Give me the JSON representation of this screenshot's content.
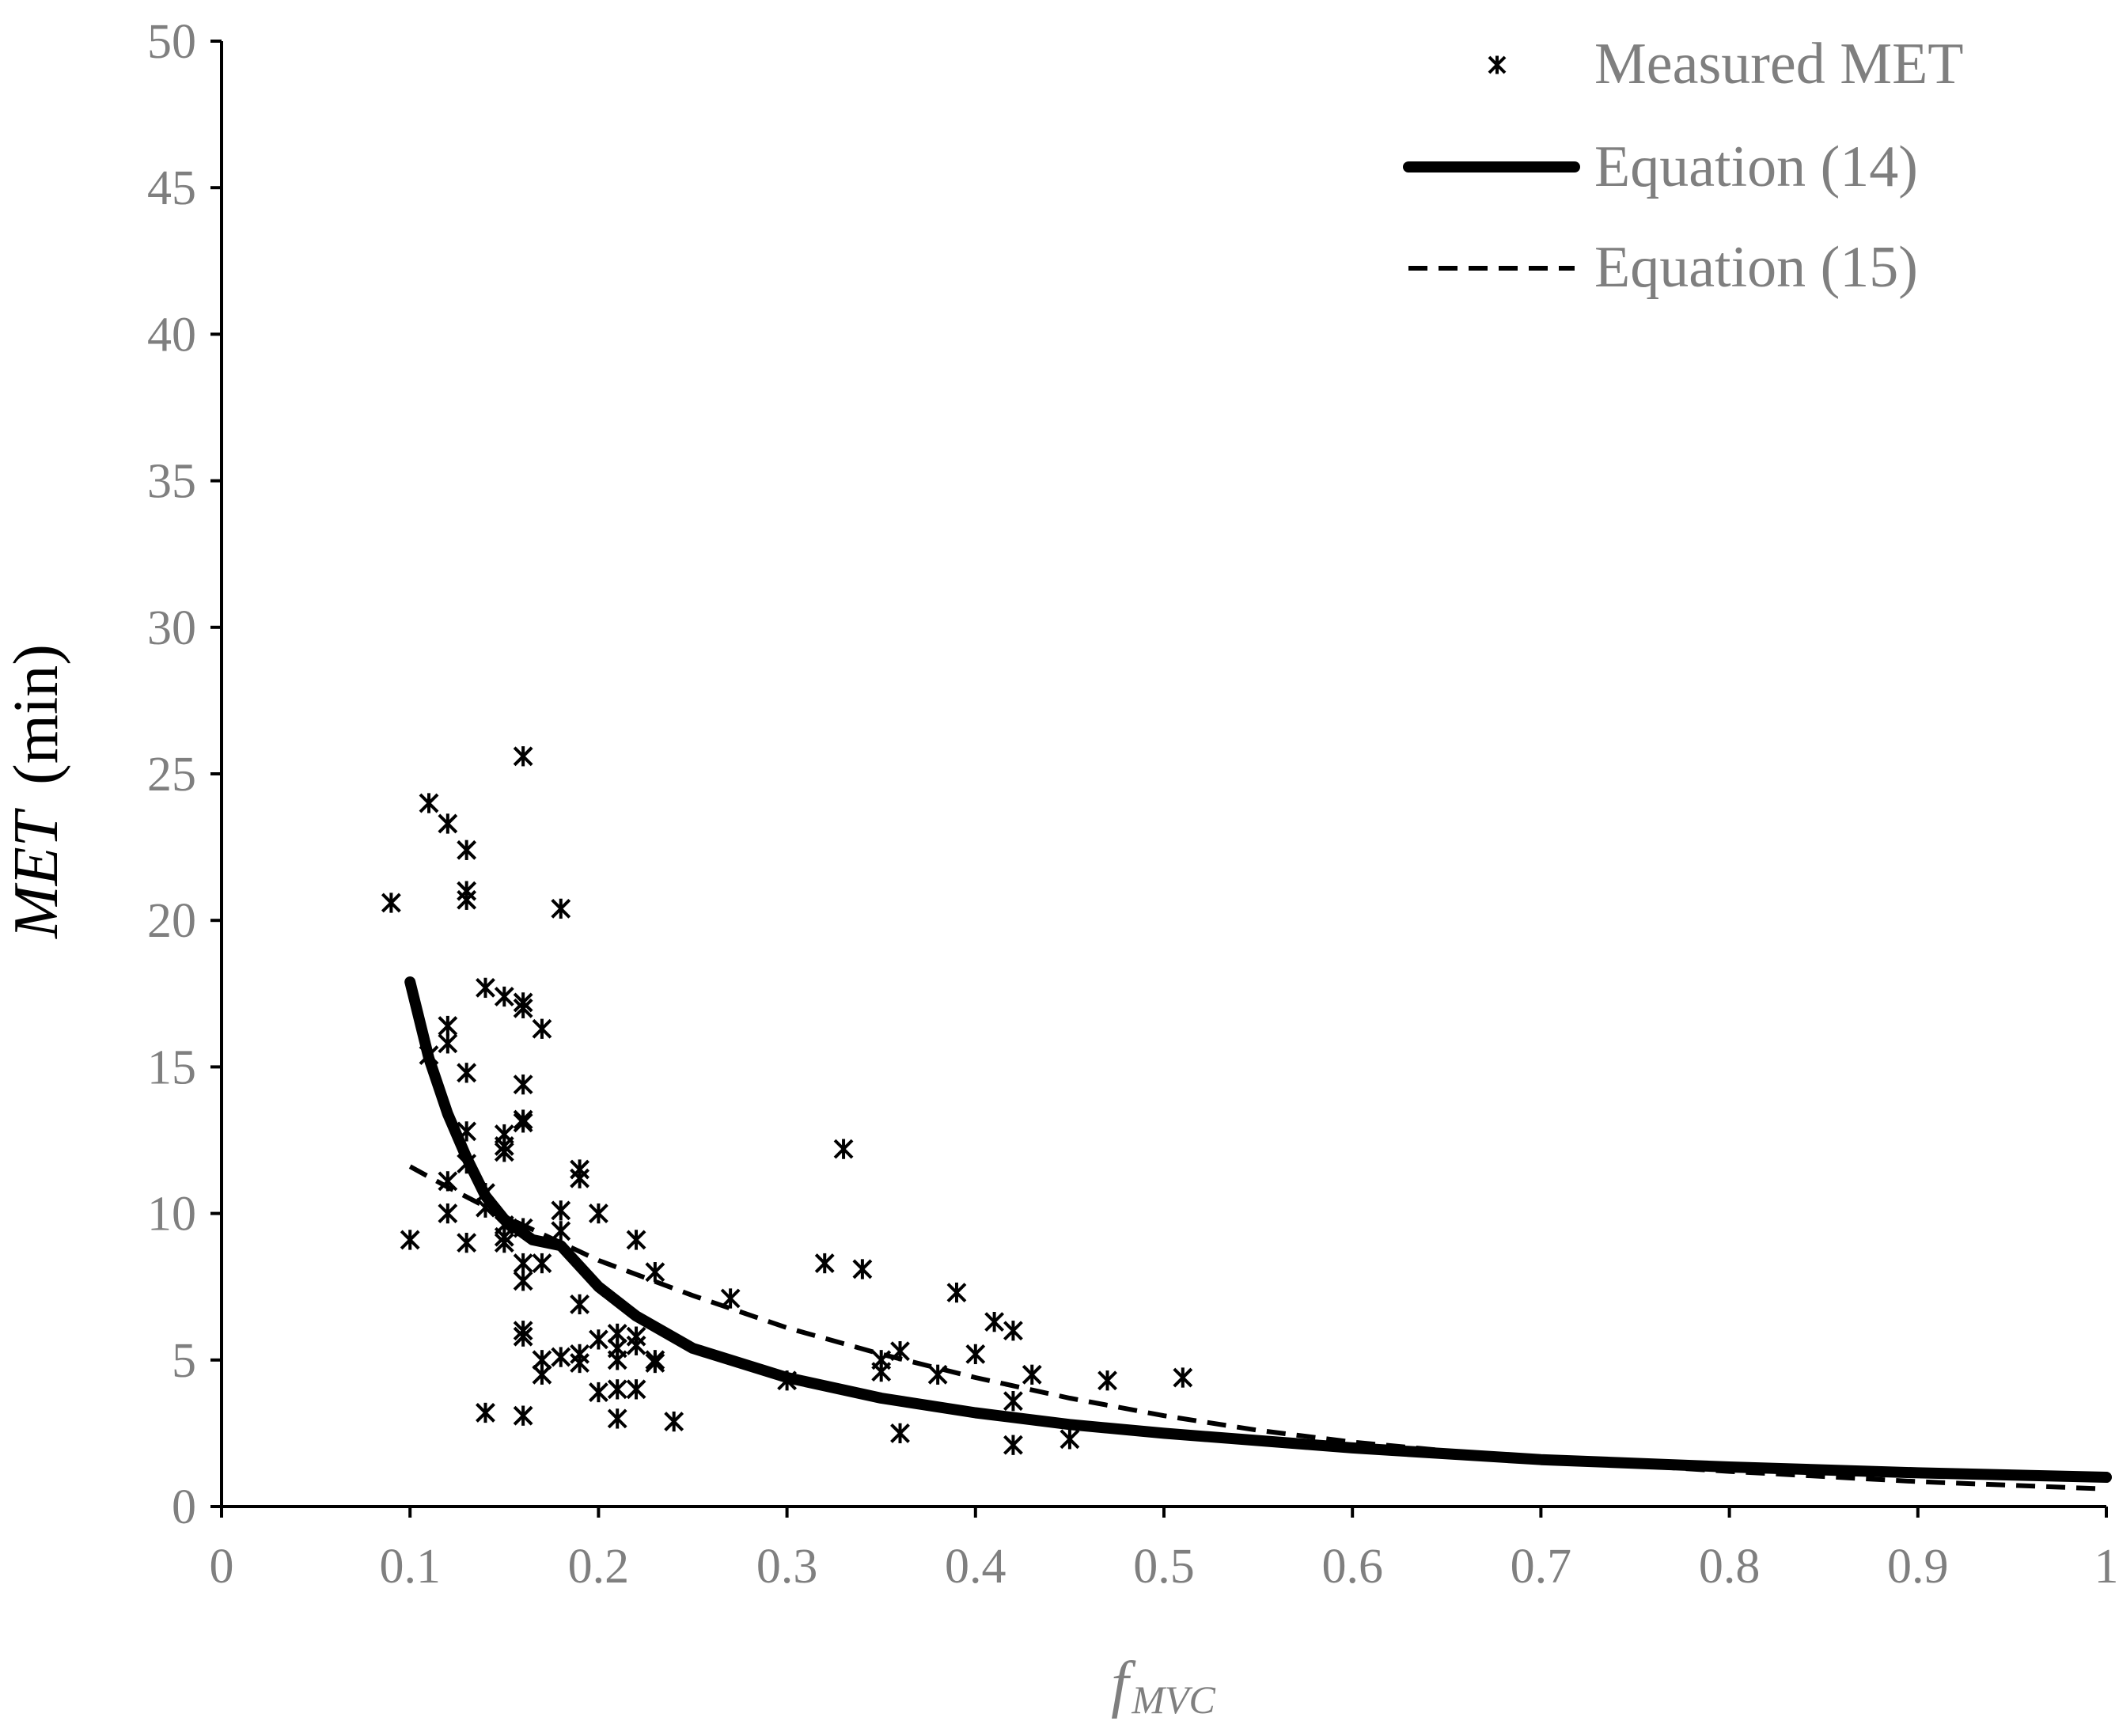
{
  "chart_data": {
    "type": "scatter",
    "title": "",
    "xlabel": "fMVC",
    "xlabel_main": "f",
    "xlabel_sub": "MVC",
    "ylabel": "MET (min)",
    "ylabel_italic": "MET",
    "ylabel_unit": "(min)",
    "xlim": [
      0,
      1
    ],
    "ylim": [
      0,
      50
    ],
    "xticks": [
      0,
      0.1,
      0.2,
      0.3,
      0.4,
      0.5,
      0.6,
      0.7,
      0.8,
      0.9,
      1
    ],
    "xtick_labels": [
      "0",
      "0.1",
      "0.2",
      "0.3",
      "0.4",
      "0.5",
      "0.6",
      "0.7",
      "0.8",
      "0.9",
      "1"
    ],
    "yticks": [
      0,
      5,
      10,
      15,
      20,
      25,
      30,
      35,
      40,
      45,
      50
    ],
    "ytick_labels": [
      "0",
      "5",
      "10",
      "15",
      "20",
      "25",
      "30",
      "35",
      "40",
      "45",
      "50"
    ],
    "grid": false,
    "legend_position": "top-right",
    "colors": {
      "axis": "#000000",
      "tick_text": "#7f7f7f",
      "series": "#000000"
    },
    "series": [
      {
        "name": "Measured MET",
        "kind": "scatter",
        "marker": "asterisk",
        "points": [
          [
            0.09,
            20.6
          ],
          [
            0.1,
            9.1
          ],
          [
            0.11,
            24.0
          ],
          [
            0.11,
            15.4
          ],
          [
            0.12,
            23.3
          ],
          [
            0.12,
            16.4
          ],
          [
            0.12,
            15.8
          ],
          [
            0.12,
            11.1
          ],
          [
            0.12,
            10.0
          ],
          [
            0.13,
            22.4
          ],
          [
            0.13,
            21.0
          ],
          [
            0.13,
            20.7
          ],
          [
            0.13,
            14.8
          ],
          [
            0.13,
            12.8
          ],
          [
            0.13,
            11.7
          ],
          [
            0.13,
            9.0
          ],
          [
            0.14,
            17.7
          ],
          [
            0.14,
            10.7
          ],
          [
            0.14,
            10.2
          ],
          [
            0.14,
            3.2
          ],
          [
            0.15,
            17.4
          ],
          [
            0.15,
            12.7
          ],
          [
            0.15,
            12.3
          ],
          [
            0.15,
            12.1
          ],
          [
            0.15,
            9.6
          ],
          [
            0.15,
            9.2
          ],
          [
            0.15,
            9.0
          ],
          [
            0.16,
            25.6
          ],
          [
            0.16,
            17.2
          ],
          [
            0.16,
            17.0
          ],
          [
            0.16,
            14.4
          ],
          [
            0.16,
            13.2
          ],
          [
            0.16,
            13.1
          ],
          [
            0.16,
            9.5
          ],
          [
            0.16,
            8.3
          ],
          [
            0.16,
            7.7
          ],
          [
            0.16,
            6.0
          ],
          [
            0.16,
            5.8
          ],
          [
            0.16,
            3.1
          ],
          [
            0.17,
            16.3
          ],
          [
            0.17,
            8.3
          ],
          [
            0.17,
            5.0
          ],
          [
            0.17,
            4.5
          ],
          [
            0.18,
            20.4
          ],
          [
            0.18,
            10.1
          ],
          [
            0.18,
            9.4
          ],
          [
            0.18,
            5.1
          ],
          [
            0.19,
            11.5
          ],
          [
            0.19,
            11.2
          ],
          [
            0.19,
            6.9
          ],
          [
            0.19,
            5.2
          ],
          [
            0.19,
            4.9
          ],
          [
            0.2,
            10.0
          ],
          [
            0.2,
            5.7
          ],
          [
            0.2,
            3.9
          ],
          [
            0.21,
            5.9
          ],
          [
            0.21,
            5.4
          ],
          [
            0.21,
            5.0
          ],
          [
            0.21,
            4.0
          ],
          [
            0.21,
            3.0
          ],
          [
            0.22,
            9.1
          ],
          [
            0.22,
            5.8
          ],
          [
            0.22,
            5.5
          ],
          [
            0.22,
            4.0
          ],
          [
            0.23,
            8.0
          ],
          [
            0.23,
            5.0
          ],
          [
            0.23,
            4.9
          ],
          [
            0.24,
            2.9
          ],
          [
            0.27,
            7.1
          ],
          [
            0.3,
            4.3
          ],
          [
            0.32,
            8.3
          ],
          [
            0.33,
            12.2
          ],
          [
            0.34,
            8.1
          ],
          [
            0.35,
            5.0
          ],
          [
            0.35,
            4.6
          ],
          [
            0.36,
            5.3
          ],
          [
            0.36,
            2.5
          ],
          [
            0.38,
            4.5
          ],
          [
            0.39,
            7.3
          ],
          [
            0.4,
            5.2
          ],
          [
            0.41,
            6.3
          ],
          [
            0.42,
            6.0
          ],
          [
            0.42,
            3.6
          ],
          [
            0.42,
            2.1
          ],
          [
            0.43,
            4.5
          ],
          [
            0.45,
            2.3
          ],
          [
            0.47,
            4.3
          ],
          [
            0.51,
            4.4
          ]
        ]
      },
      {
        "name": "Equation (14)",
        "kind": "line",
        "style": "solid-thick",
        "points": [
          [
            0.1,
            17.9
          ],
          [
            0.11,
            15.3
          ],
          [
            0.12,
            13.4
          ],
          [
            0.13,
            11.9
          ],
          [
            0.14,
            10.6
          ],
          [
            0.15,
            9.8
          ],
          [
            0.165,
            9.1
          ],
          [
            0.18,
            8.9
          ],
          [
            0.2,
            7.5
          ],
          [
            0.22,
            6.5
          ],
          [
            0.25,
            5.4
          ],
          [
            0.3,
            4.4
          ],
          [
            0.35,
            3.7
          ],
          [
            0.4,
            3.2
          ],
          [
            0.45,
            2.8
          ],
          [
            0.5,
            2.5
          ],
          [
            0.6,
            2.0
          ],
          [
            0.7,
            1.6
          ],
          [
            0.8,
            1.35
          ],
          [
            0.9,
            1.15
          ],
          [
            1.0,
            1.0
          ]
        ]
      },
      {
        "name": "Equation (15)",
        "kind": "line",
        "style": "dashed",
        "points": [
          [
            0.1,
            11.6
          ],
          [
            0.12,
            10.9
          ],
          [
            0.15,
            9.9
          ],
          [
            0.18,
            9.0
          ],
          [
            0.2,
            8.4
          ],
          [
            0.25,
            7.2
          ],
          [
            0.3,
            6.1
          ],
          [
            0.35,
            5.2
          ],
          [
            0.4,
            4.4
          ],
          [
            0.45,
            3.7
          ],
          [
            0.5,
            3.1
          ],
          [
            0.55,
            2.6
          ],
          [
            0.6,
            2.2
          ],
          [
            0.7,
            1.6
          ],
          [
            0.8,
            1.2
          ],
          [
            0.9,
            0.85
          ],
          [
            1.0,
            0.6
          ]
        ]
      }
    ]
  }
}
